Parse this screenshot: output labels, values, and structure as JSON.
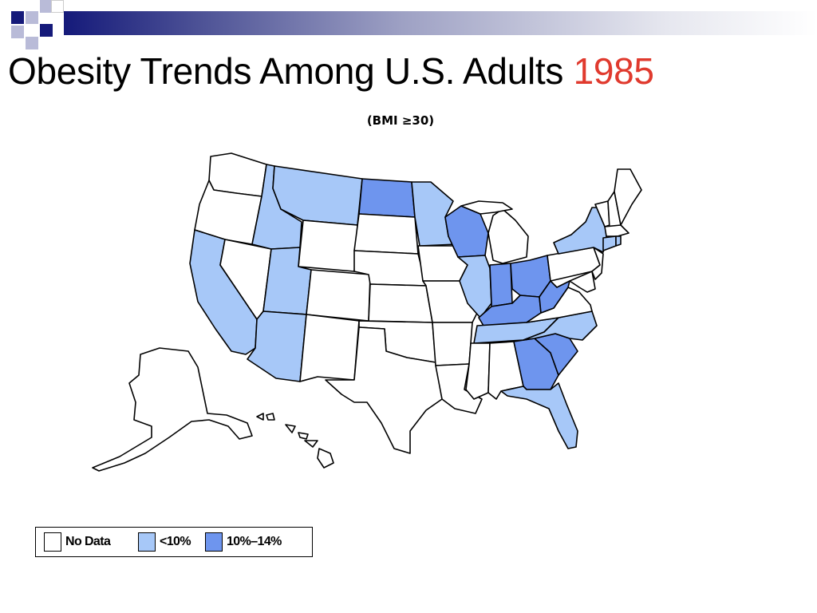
{
  "slide": {
    "title": "Obesity Trends Among U.S. Adults",
    "year": "1985",
    "subtitle": "(BMI ≥30)"
  },
  "colors": {
    "no_data": "#ffffff",
    "lt10": "#a7c8f8",
    "10to14": "#6e95ee",
    "title_year": "#e03a2e",
    "banner_dark": "#151a7a"
  },
  "legend": [
    {
      "label": "No Data",
      "category": "no_data"
    },
    {
      "label": "<10%",
      "category": "lt10"
    },
    {
      "label": "10%–14%",
      "category": "10to14"
    }
  ]
}
